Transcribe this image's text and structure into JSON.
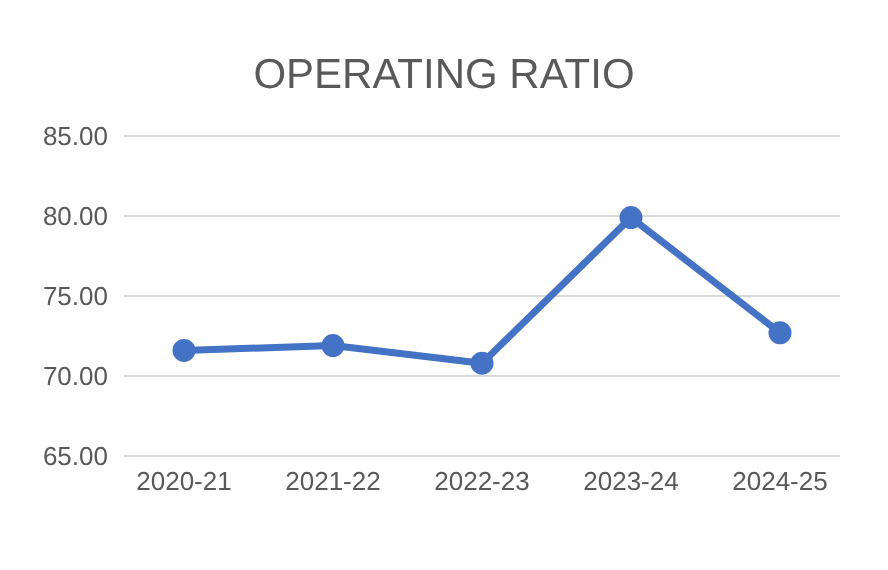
{
  "chart_data": {
    "type": "line",
    "title": "OPERATING RATIO",
    "categories": [
      "2020-21",
      "2021-22",
      "2022-23",
      "2023-24",
      "2024-25"
    ],
    "series": [
      {
        "color": "#4472c4",
        "values": [
          71.6,
          71.9,
          70.8,
          79.9,
          72.7
        ]
      }
    ],
    "ylim": [
      65,
      85
    ],
    "yticks": [
      {
        "value": 65,
        "label": "65.00"
      },
      {
        "value": 70,
        "label": "70.00"
      },
      {
        "value": 75,
        "label": "75.00"
      },
      {
        "value": 80,
        "label": "80.00"
      },
      {
        "value": 85,
        "label": "85.00"
      }
    ],
    "grid": "y",
    "marker": "circle",
    "line_style": "solid",
    "legend": false
  }
}
